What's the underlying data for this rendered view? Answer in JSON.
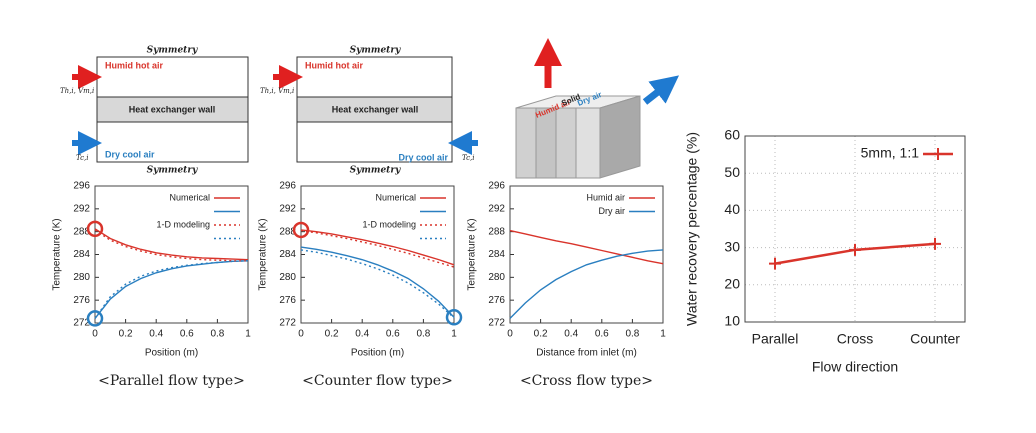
{
  "diagrams": [
    {
      "top": "Symmetry",
      "hot": "Humid hot air",
      "wall": "Heat exchanger wall",
      "cold": "Dry cool air",
      "bottom": "Symmetry",
      "hot_inlet": "Th,i, Vm,i",
      "cold_inlet": "Tc,i"
    },
    {
      "top": "Symmetry",
      "hot": "Humid hot air",
      "wall": "Heat exchanger wall",
      "cold": "Dry cool air",
      "bottom": "Symmetry",
      "hot_inlet": "Th,i, Vm,i",
      "cold_inlet": "Tc,i"
    },
    {
      "hot": "Humid air",
      "wall": "Solid",
      "cold": "Dry air"
    }
  ],
  "chart_data": [
    {
      "type": "line",
      "caption": "<Parallel flow type>",
      "x_label": "Position (m)",
      "y_label": "Temperature (K)",
      "x": [
        0,
        0.1,
        0.2,
        0.3,
        0.4,
        0.5,
        0.6,
        0.7,
        0.8,
        0.9,
        1
      ],
      "xlim": [
        0,
        1
      ],
      "xticks": [
        0,
        0.2,
        0.4,
        0.6,
        0.8,
        1
      ],
      "ylim": [
        272,
        296
      ],
      "yticks": [
        272,
        276,
        280,
        284,
        288,
        292,
        296
      ],
      "grid": false,
      "series": [
        {
          "name": "Numerical",
          "color": "#d9342b",
          "style": "solid",
          "values": [
            288.5,
            286.8,
            285.7,
            284.9,
            284.3,
            283.9,
            283.6,
            283.4,
            283.3,
            283.2,
            283.1
          ]
        },
        {
          "color": "#2a7fc0",
          "style": "solid",
          "values": [
            272.8,
            276.2,
            278.4,
            279.8,
            280.8,
            281.5,
            282.0,
            282.3,
            282.6,
            282.8,
            282.9
          ]
        },
        {
          "name": "1-D modeling",
          "color": "#d9342b",
          "style": "dotted",
          "values": [
            288.3,
            286.5,
            285.4,
            284.6,
            284.0,
            283.6,
            283.3,
            283.1,
            283.0,
            282.9,
            282.9
          ]
        },
        {
          "color": "#2a7fc0",
          "style": "dotted",
          "values": [
            272.8,
            276.6,
            278.8,
            280.2,
            281.1,
            281.7,
            282.1,
            282.4,
            282.6,
            282.8,
            282.9
          ]
        }
      ],
      "circled": [
        {
          "series": 0,
          "index": 0
        },
        {
          "series": 1,
          "index": 0
        }
      ]
    },
    {
      "type": "line",
      "caption": "<Counter flow type>",
      "x_label": "Position (m)",
      "y_label": "Temperature (K)",
      "x": [
        0,
        0.1,
        0.2,
        0.3,
        0.4,
        0.5,
        0.6,
        0.7,
        0.8,
        0.9,
        1
      ],
      "xlim": [
        0,
        1
      ],
      "xticks": [
        0,
        0.2,
        0.4,
        0.6,
        0.8,
        1
      ],
      "ylim": [
        272,
        296
      ],
      "yticks": [
        272,
        276,
        280,
        284,
        288,
        292,
        296
      ],
      "grid": false,
      "series": [
        {
          "name": "Numerical",
          "color": "#d9342b",
          "style": "solid",
          "values": [
            288.3,
            288.0,
            287.6,
            287.1,
            286.6,
            286.0,
            285.4,
            284.7,
            283.9,
            283.1,
            282.2
          ]
        },
        {
          "color": "#2a7fc0",
          "style": "solid",
          "values": [
            285.3,
            284.9,
            284.4,
            283.8,
            283.1,
            282.2,
            281.1,
            279.8,
            278.0,
            275.8,
            273.0
          ]
        },
        {
          "name": "1-D modeling",
          "color": "#d9342b",
          "style": "dotted",
          "values": [
            288.2,
            287.8,
            287.3,
            286.8,
            286.2,
            285.6,
            284.9,
            284.2,
            283.4,
            282.6,
            281.8
          ]
        },
        {
          "color": "#2a7fc0",
          "style": "dotted",
          "values": [
            284.8,
            284.4,
            283.8,
            283.2,
            282.4,
            281.5,
            280.4,
            279.0,
            277.3,
            275.3,
            272.9
          ]
        }
      ],
      "circled": [
        {
          "series": 0,
          "index": 0
        },
        {
          "series": 1,
          "index": 10
        }
      ]
    },
    {
      "type": "line",
      "caption": "<Cross flow type>",
      "x_label": "Distance from inlet (m)",
      "y_label": "Temperature (K)",
      "x": [
        0,
        0.1,
        0.2,
        0.3,
        0.4,
        0.5,
        0.6,
        0.7,
        0.8,
        0.9,
        1
      ],
      "xlim": [
        0,
        1
      ],
      "xticks": [
        0,
        0.2,
        0.4,
        0.6,
        0.8,
        1
      ],
      "ylim": [
        272,
        296
      ],
      "yticks": [
        272,
        276,
        280,
        284,
        288,
        292,
        296
      ],
      "grid": false,
      "series": [
        {
          "name": "Humid air",
          "color": "#d9342b",
          "style": "solid",
          "values": [
            288.2,
            287.6,
            287.0,
            286.4,
            285.9,
            285.3,
            284.7,
            284.1,
            283.5,
            282.9,
            282.4
          ]
        },
        {
          "name": "Dry air",
          "color": "#2a7fc0",
          "style": "solid",
          "values": [
            272.8,
            275.5,
            277.8,
            279.6,
            281.0,
            282.2,
            283.0,
            283.7,
            284.2,
            284.6,
            284.8
          ]
        }
      ]
    },
    {
      "type": "line",
      "x_label": "Flow direction",
      "y_label": "Water recovery percentage (%)",
      "categories": [
        "Parallel",
        "Cross",
        "Counter"
      ],
      "ylim": [
        10,
        60
      ],
      "yticks": [
        10,
        20,
        30,
        40,
        50,
        60
      ],
      "grid": true,
      "series": [
        {
          "name": "5mm, 1:1",
          "color": "#d9342b",
          "style": "solid",
          "marker": "plus",
          "values": [
            25.7,
            29.4,
            31.0
          ]
        }
      ]
    }
  ]
}
